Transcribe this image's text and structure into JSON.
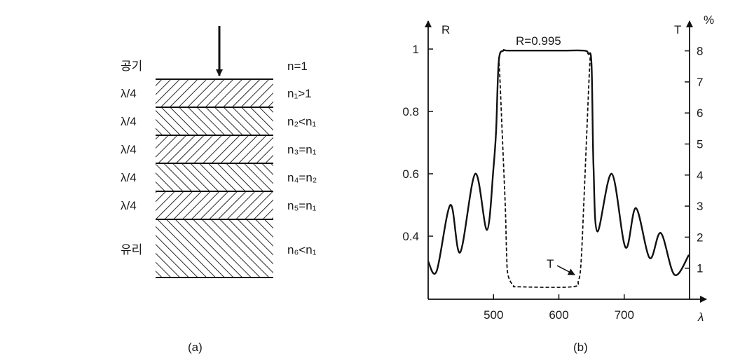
{
  "panel_a": {
    "caption": "(a)",
    "incident_arrow": "arrow-down",
    "layers": [
      {
        "left": "공기",
        "right": "n=1"
      },
      {
        "left": "λ/4",
        "right": "n₁>1",
        "hatch": "back"
      },
      {
        "left": "λ/4",
        "right": "n₂<n₁",
        "hatch": "fwd"
      },
      {
        "left": "λ/4",
        "right": "n₃=n₁",
        "hatch": "back"
      },
      {
        "left": "λ/4",
        "right": "n₄=n₂",
        "hatch": "fwd"
      },
      {
        "left": "λ/4",
        "right": "n₅=n₁",
        "hatch": "back"
      },
      {
        "left": "유리",
        "right": "n₆<n₁",
        "hatch": "fwd"
      }
    ]
  },
  "panel_b": {
    "caption": "(b)"
  },
  "chart_data": {
    "type": "line",
    "title": "",
    "xlabel": "λ",
    "ylabel": "R",
    "y2label": "T",
    "y2unit": "%",
    "xlim": [
      400,
      800
    ],
    "ylim": [
      0.2,
      1.0
    ],
    "y2lim": [
      0,
      8
    ],
    "xticks": [
      500,
      600,
      700
    ],
    "yticks": [
      0.4,
      0.6,
      0.8,
      1
    ],
    "ytick_labels": [
      "0.4",
      "0.6",
      "0.8",
      "1"
    ],
    "y2ticks": [
      1,
      2,
      3,
      4,
      5,
      6,
      7,
      8
    ],
    "annotations": {
      "peak_label": "R=0.995",
      "t_label": "T"
    },
    "series": [
      {
        "name": "R",
        "axis": "left",
        "style": "solid",
        "x": [
          400,
          413,
          434,
          449,
          472,
          490,
          500,
          504,
          508,
          515,
          525,
          600,
          638,
          645,
          650,
          653,
          659,
          681,
          702,
          718,
          739,
          756,
          777,
          799
        ],
        "y": [
          0.319,
          0.288,
          0.5,
          0.348,
          0.6,
          0.42,
          0.62,
          0.74,
          0.96,
          0.995,
          0.995,
          0.995,
          0.995,
          0.985,
          0.95,
          0.625,
          0.415,
          0.6,
          0.364,
          0.49,
          0.33,
          0.41,
          0.276,
          0.34
        ]
      },
      {
        "name": "T",
        "axis": "right",
        "style": "dashed",
        "x": [
          508,
          510,
          514,
          518,
          520,
          522,
          530,
          540,
          620,
          630,
          634,
          638,
          642,
          646,
          648
        ],
        "y": [
          7.8,
          7.0,
          5.0,
          3.0,
          1.5,
          0.8,
          0.45,
          0.4,
          0.4,
          0.6,
          1.2,
          3.0,
          5.0,
          7.0,
          7.8
        ]
      }
    ]
  }
}
